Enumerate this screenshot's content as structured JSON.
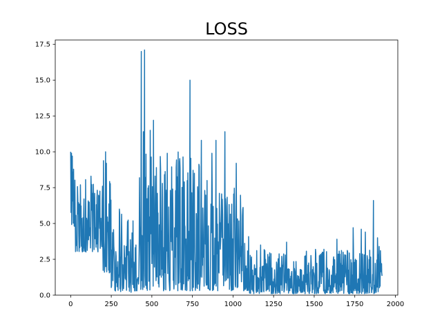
{
  "chart_data": {
    "type": "line",
    "title": "LOSS",
    "xlabel": "",
    "ylabel": "",
    "xlim": [
      -95,
      2015
    ],
    "ylim": [
      0,
      17.8
    ],
    "xticks": [
      0,
      250,
      500,
      750,
      1000,
      1250,
      1500,
      1750,
      2000
    ],
    "xtick_labels": [
      "0",
      "250",
      "500",
      "750",
      "1000",
      "1250",
      "1500",
      "1750",
      "2000"
    ],
    "yticks": [
      0,
      2.5,
      5,
      7.5,
      10,
      12.5,
      15,
      17.5
    ],
    "ytick_labels": [
      "0.0",
      "2.5",
      "5.0",
      "7.5",
      "10.0",
      "12.5",
      "15.0",
      "17.5"
    ],
    "grid": false,
    "line_color": "#1f77b4",
    "series": [
      {
        "segments": [
          {
            "x0": 0,
            "x1": 30,
            "low": 4.8,
            "high": 10.0,
            "seed": 11
          },
          {
            "x0": 30,
            "x1": 200,
            "low": 3.0,
            "high": 8.2,
            "seed": 12
          },
          {
            "x0": 200,
            "x1": 250,
            "low": 1.5,
            "high": 10.0,
            "seed": 13
          },
          {
            "x0": 250,
            "x1": 420,
            "low": 0.2,
            "high": 6.0,
            "seed": 14
          },
          {
            "x0": 420,
            "x1": 800,
            "low": 0.3,
            "high": 10.0,
            "seed": 15
          },
          {
            "x0": 800,
            "x1": 1100,
            "low": 0.3,
            "high": 7.5,
            "seed": 16
          },
          {
            "x0": 1100,
            "x1": 1920,
            "low": 0.1,
            "high": 3.2,
            "seed": 17
          }
        ],
        "spikes": [
          {
            "x": 0,
            "y": 10.0
          },
          {
            "x": 5,
            "y": 9.9
          },
          {
            "x": 15,
            "y": 8.6
          },
          {
            "x": 60,
            "y": 7.7
          },
          {
            "x": 125,
            "y": 8.3
          },
          {
            "x": 215,
            "y": 10.0
          },
          {
            "x": 220,
            "y": 9.2
          },
          {
            "x": 300,
            "y": 6.0
          },
          {
            "x": 435,
            "y": 17.0
          },
          {
            "x": 448,
            "y": 11.4
          },
          {
            "x": 455,
            "y": 17.1
          },
          {
            "x": 490,
            "y": 11.5
          },
          {
            "x": 510,
            "y": 12.2
          },
          {
            "x": 565,
            "y": 7.8
          },
          {
            "x": 595,
            "y": 9.9
          },
          {
            "x": 628,
            "y": 7.4
          },
          {
            "x": 670,
            "y": 9.3
          },
          {
            "x": 700,
            "y": 7.9
          },
          {
            "x": 735,
            "y": 15.0
          },
          {
            "x": 760,
            "y": 6.7
          },
          {
            "x": 805,
            "y": 10.8
          },
          {
            "x": 840,
            "y": 8.0
          },
          {
            "x": 870,
            "y": 9.9
          },
          {
            "x": 895,
            "y": 10.8
          },
          {
            "x": 950,
            "y": 11.4
          },
          {
            "x": 1020,
            "y": 9.2
          },
          {
            "x": 1060,
            "y": 6.0
          },
          {
            "x": 1170,
            "y": 3.5
          },
          {
            "x": 1330,
            "y": 3.7
          },
          {
            "x": 1560,
            "y": 3.2
          },
          {
            "x": 1640,
            "y": 3.9
          },
          {
            "x": 1740,
            "y": 4.7
          },
          {
            "x": 1790,
            "y": 4.6
          },
          {
            "x": 1815,
            "y": 4.4
          },
          {
            "x": 1865,
            "y": 6.6
          },
          {
            "x": 1890,
            "y": 4.0
          },
          {
            "x": 1900,
            "y": 3.4
          },
          {
            "x": 1915,
            "y": 2.2
          }
        ]
      }
    ]
  }
}
